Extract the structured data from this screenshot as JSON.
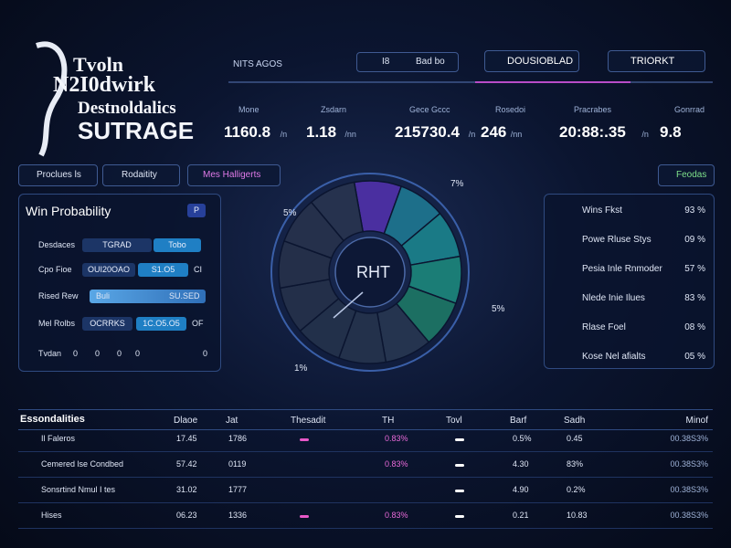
{
  "logo": {
    "lines": [
      "Tvoln",
      "N2I0dwirk",
      "Destnoldalics",
      "SUTRAGE"
    ]
  },
  "nav": {
    "item": "NITS AGOS",
    "box_left": "I8",
    "box_right": "Bad bo",
    "tab_a": "DOUSIOBLAD",
    "tab_b": "TRIORKT"
  },
  "stats": [
    {
      "label": "Mone",
      "value": "1160.8",
      "unit": "/n"
    },
    {
      "label": "Zsdarn",
      "value": "1.18",
      "unit": "/nn"
    },
    {
      "label": "Gece Gccc",
      "value": "215730.4",
      "unit": "/n"
    },
    {
      "label": "Rosedoi",
      "value": "246",
      "unit": "/nn"
    },
    {
      "label": "Pracrabes",
      "value": "20:88:.35",
      "unit": "/n"
    },
    {
      "label": "Gonrrad",
      "value": "9.8"
    }
  ],
  "tabs": [
    "Proclues ls",
    "Rodaitity",
    "Mes Halligerts"
  ],
  "filter": "Feodas",
  "win_probability": {
    "title": "Win Probability",
    "badge": "P",
    "rows": [
      [
        "Desdaces",
        "TGRAD",
        "Tobo"
      ],
      [
        "Cpo Fioe",
        "OUI20OAO",
        "S1.O5",
        "CI"
      ],
      [
        "Rised Rew",
        "Buli",
        "SU.SED"
      ],
      [
        "Mel Rolbs",
        "OCRRKS",
        "1C.O5.O5",
        "OF"
      ]
    ],
    "footer": [
      "Tvdan",
      "0",
      "0",
      "0",
      "0",
      "0"
    ]
  },
  "gauge": {
    "center": "RHT",
    "labels": [
      "7%",
      "5%",
      "5%",
      "1%"
    ]
  },
  "side_list": [
    {
      "label": "Wins Fkst",
      "value": "93 %"
    },
    {
      "label": "Powe Rluse Stys",
      "value": "09 %"
    },
    {
      "label": "Pesia Inle Rnmoder",
      "value": "57 %"
    },
    {
      "label": "Nlede Inie Ilues",
      "value": "83 %"
    },
    {
      "label": "Rlase Foel",
      "value": "08 %"
    },
    {
      "label": "Kose Nel afialts",
      "value": "05 %"
    }
  ],
  "table": {
    "title": "Essondalities",
    "columns": [
      "Dlaoe",
      "Jat",
      "Thesadit",
      "TH",
      "Tovl",
      "Barf",
      "Sadh",
      "Minof"
    ],
    "rows": [
      [
        "Il Faleros",
        "17.45",
        "1786",
        "0.83%",
        "0.5%",
        "0.45",
        "00.38S3%"
      ],
      [
        "Cemered lse Condbed",
        "57.42",
        "0119",
        "0.83%",
        "4.30",
        "83%",
        "00.38S3%"
      ],
      [
        "Sonsrtind Nmul I tes",
        "31.02",
        "1777",
        "4.90",
        "0.2%",
        "00.38S3%"
      ],
      [
        "Hises",
        "06.23",
        "1336",
        "0.83%",
        "0.21",
        "10.83",
        "00.38S3%"
      ]
    ]
  }
}
